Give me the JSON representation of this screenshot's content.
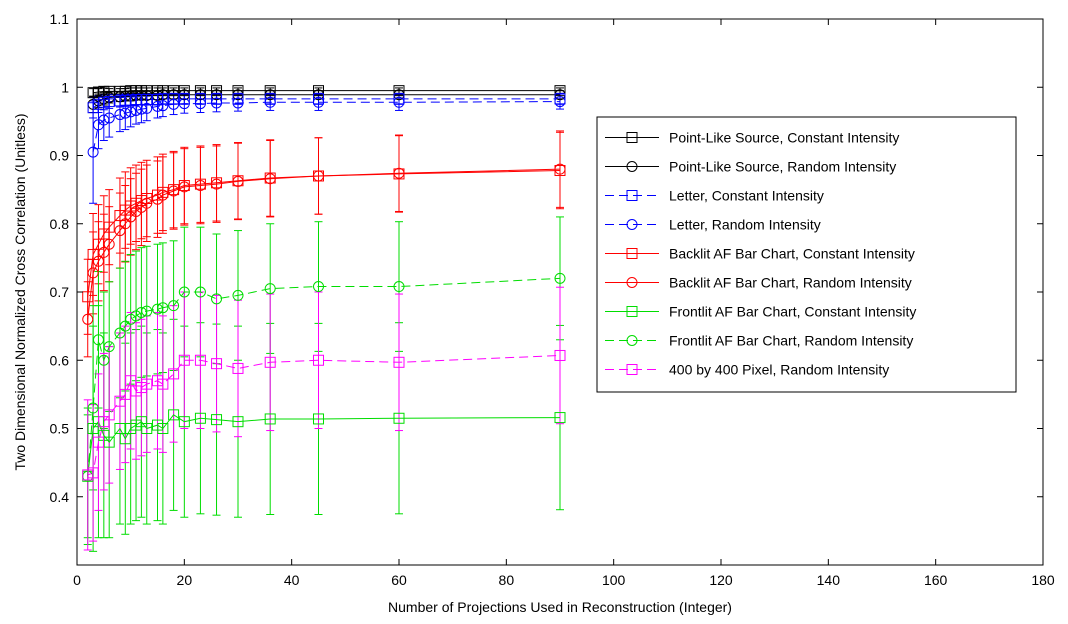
{
  "chart_data": {
    "type": "line",
    "title": "",
    "xlabel": "Number of Projections Used in Reconstruction (Integer)",
    "ylabel": "Two Dimensional Normalized Cross Correlation (Unitless)",
    "xlim": [
      0,
      180
    ],
    "ylim": [
      0.3,
      1.1
    ],
    "xticks": [
      0,
      20,
      40,
      60,
      80,
      100,
      120,
      140,
      160,
      180
    ],
    "yticks": [
      0.4,
      0.5,
      0.6,
      0.7,
      0.8,
      0.9,
      1,
      1.1
    ],
    "grid": false,
    "legend_position": "right",
    "x": [
      2,
      3,
      4,
      5,
      6,
      8,
      9,
      10,
      11,
      12,
      13,
      15,
      16,
      18,
      20,
      23,
      26,
      30,
      36,
      45,
      60,
      90
    ],
    "series": [
      {
        "name": "Point-Like Source, Constant Intensity",
        "color": "#000000",
        "marker": "square",
        "line": "solid",
        "values": [
          null,
          0.992,
          0.993,
          0.994,
          0.994,
          0.994,
          0.994,
          0.995,
          0.995,
          0.995,
          0.995,
          0.995,
          0.995,
          0.995,
          0.995,
          0.995,
          0.995,
          0.995,
          0.995,
          0.995,
          0.995,
          0.995
        ],
        "errors": [
          null,
          0.006,
          0.005,
          0.005,
          0.004,
          0.004,
          0.004,
          0.004,
          0.004,
          0.004,
          0.004,
          0.004,
          0.004,
          0.004,
          0.004,
          0.004,
          0.004,
          0.004,
          0.004,
          0.004,
          0.004,
          0.004
        ]
      },
      {
        "name": "Point-Like Source, Random Intensity",
        "color": "#000000",
        "marker": "circle",
        "line": "solid",
        "values": [
          null,
          0.975,
          0.98,
          0.983,
          0.985,
          0.986,
          0.987,
          0.987,
          0.988,
          0.988,
          0.988,
          0.988,
          0.989,
          0.989,
          0.989,
          0.989,
          0.989,
          0.989,
          0.989,
          0.989,
          0.989,
          0.989
        ],
        "errors": [
          null,
          0.012,
          0.01,
          0.009,
          0.008,
          0.007,
          0.007,
          0.007,
          0.006,
          0.006,
          0.006,
          0.006,
          0.006,
          0.006,
          0.006,
          0.006,
          0.006,
          0.006,
          0.006,
          0.006,
          0.006,
          0.006
        ]
      },
      {
        "name": "Letter, Constant Intensity",
        "color": "#0000ff",
        "marker": "square",
        "line": "dashed",
        "values": [
          null,
          0.97,
          0.975,
          0.978,
          0.979,
          0.98,
          0.981,
          0.981,
          0.982,
          0.982,
          0.982,
          0.982,
          0.983,
          0.983,
          0.983,
          0.983,
          0.983,
          0.983,
          0.983,
          0.983,
          0.983,
          0.983
        ],
        "errors": [
          null,
          0.015,
          0.012,
          0.011,
          0.01,
          0.009,
          0.009,
          0.008,
          0.008,
          0.008,
          0.008,
          0.008,
          0.008,
          0.008,
          0.008,
          0.008,
          0.008,
          0.008,
          0.008,
          0.008,
          0.008,
          0.008
        ]
      },
      {
        "name": "Letter, Random Intensity",
        "color": "#0000ff",
        "marker": "circle",
        "line": "dashed",
        "values": [
          null,
          0.905,
          0.945,
          0.952,
          0.955,
          0.96,
          0.962,
          0.964,
          0.966,
          0.968,
          0.969,
          0.972,
          0.973,
          0.975,
          0.976,
          0.976,
          0.977,
          0.977,
          0.978,
          0.978,
          0.978,
          0.979
        ],
        "errors": [
          null,
          0.075,
          0.035,
          0.03,
          0.028,
          0.025,
          0.024,
          0.022,
          0.02,
          0.02,
          0.018,
          0.017,
          0.016,
          0.015,
          0.014,
          0.013,
          0.013,
          0.012,
          0.012,
          0.012,
          0.012,
          0.011
        ]
      },
      {
        "name": "Backlit AF Bar Chart, Constant Intensity",
        "color": "#ff0000",
        "marker": "square",
        "line": "solid",
        "values": [
          0.693,
          0.755,
          0.77,
          0.785,
          0.795,
          0.812,
          0.82,
          0.826,
          0.83,
          0.834,
          0.837,
          0.842,
          0.846,
          0.85,
          0.856,
          0.858,
          0.86,
          0.863,
          0.867,
          0.87,
          0.873,
          0.878
        ],
        "errors": [
          0.055,
          0.06,
          0.058,
          0.056,
          0.055,
          0.055,
          0.056,
          0.056,
          0.056,
          0.056,
          0.056,
          0.056,
          0.056,
          0.056,
          0.056,
          0.056,
          0.056,
          0.056,
          0.056,
          0.056,
          0.056,
          0.056
        ]
      },
      {
        "name": "Backlit AF Bar Chart, Random Intensity",
        "color": "#ff0000",
        "marker": "circle",
        "line": "solid",
        "values": [
          0.66,
          0.728,
          0.745,
          0.758,
          0.77,
          0.79,
          0.8,
          0.81,
          0.818,
          0.824,
          0.83,
          0.836,
          0.842,
          0.848,
          0.854,
          0.856,
          0.858,
          0.862,
          0.866,
          0.87,
          0.874,
          0.88
        ],
        "errors": [
          0.055,
          0.06,
          0.058,
          0.056,
          0.055,
          0.055,
          0.056,
          0.056,
          0.056,
          0.056,
          0.056,
          0.056,
          0.056,
          0.056,
          0.056,
          0.056,
          0.056,
          0.056,
          0.056,
          0.056,
          0.056,
          0.056
        ]
      },
      {
        "name": "Frontlit AF Bar Chart, Constant Intensity",
        "color": "#00dd00",
        "marker": "square",
        "line": "solid",
        "values": [
          0.43,
          0.5,
          0.51,
          0.49,
          0.48,
          0.5,
          0.485,
          0.5,
          0.505,
          0.51,
          0.5,
          0.505,
          0.5,
          0.52,
          0.51,
          0.515,
          0.513,
          0.51,
          0.514,
          0.514,
          0.515,
          0.516
        ],
        "errors": [
          0.09,
          0.18,
          0.17,
          0.15,
          0.14,
          0.14,
          0.14,
          0.14,
          0.14,
          0.14,
          0.14,
          0.14,
          0.14,
          0.14,
          0.14,
          0.14,
          0.14,
          0.14,
          0.14,
          0.14,
          0.14,
          0.135
        ]
      },
      {
        "name": "Frontlit AF Bar Chart, Random Intensity",
        "color": "#00dd00",
        "marker": "circle",
        "line": "dashed",
        "values": [
          0.43,
          0.53,
          0.63,
          0.6,
          0.62,
          0.64,
          0.65,
          0.66,
          0.665,
          0.67,
          0.672,
          0.675,
          0.677,
          0.68,
          0.7,
          0.7,
          0.69,
          0.695,
          0.705,
          0.708,
          0.708,
          0.72
        ],
        "errors": [
          0.1,
          0.12,
          0.1,
          0.1,
          0.095,
          0.095,
          0.095,
          0.095,
          0.095,
          0.095,
          0.095,
          0.095,
          0.095,
          0.095,
          0.095,
          0.095,
          0.095,
          0.095,
          0.095,
          0.095,
          0.095,
          0.09
        ]
      },
      {
        "name": "400 by 400 Pixel, Random Intensity",
        "color": "#ff00ff",
        "marker": "square",
        "line": "dashed",
        "values": [
          0.432,
          0.435,
          0.48,
          0.51,
          0.52,
          0.54,
          0.55,
          0.57,
          0.555,
          0.56,
          0.565,
          0.57,
          0.565,
          0.58,
          0.6,
          0.6,
          0.595,
          0.588,
          0.597,
          0.6,
          0.597,
          0.607
        ],
        "errors": [
          0.11,
          0.1,
          0.1,
          0.1,
          0.1,
          0.1,
          0.1,
          0.1,
          0.1,
          0.1,
          0.1,
          0.1,
          0.1,
          0.1,
          0.1,
          0.1,
          0.1,
          0.1,
          0.1,
          0.1,
          0.1,
          0.1
        ]
      }
    ]
  }
}
